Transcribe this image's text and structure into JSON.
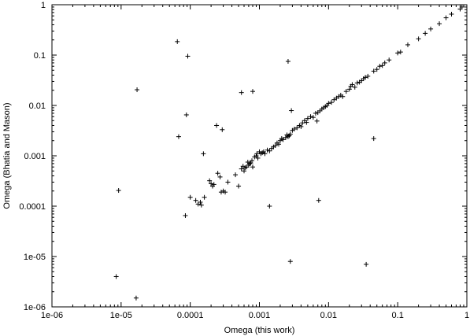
{
  "chart_data": {
    "type": "scatter",
    "title": "",
    "xlabel": "Omega (this work)",
    "ylabel": "Omega (Bhatia and Mason)",
    "xscale": "log",
    "yscale": "log",
    "xlim": [
      1e-06,
      1
    ],
    "ylim": [
      1e-06,
      1
    ],
    "grid": false,
    "marker": "+",
    "marker_color": "#000000",
    "xticks": [
      {
        "value": 1e-06,
        "label": "1e-06"
      },
      {
        "value": 1e-05,
        "label": "1e-05"
      },
      {
        "value": 0.0001,
        "label": "0.0001"
      },
      {
        "value": 0.001,
        "label": "0.001"
      },
      {
        "value": 0.01,
        "label": "0.01"
      },
      {
        "value": 0.1,
        "label": "0.1"
      },
      {
        "value": 1,
        "label": "1"
      }
    ],
    "yticks": [
      {
        "value": 1e-06,
        "label": "1e-06"
      },
      {
        "value": 1e-05,
        "label": "1e-05"
      },
      {
        "value": 0.0001,
        "label": "0.0001"
      },
      {
        "value": 0.001,
        "label": "0.001"
      },
      {
        "value": 0.01,
        "label": "0.01"
      },
      {
        "value": 0.1,
        "label": "0.1"
      },
      {
        "value": 1,
        "label": "1"
      }
    ],
    "points": [
      [
        8.5e-06,
        4e-06
      ],
      [
        1.65e-05,
        1.5e-06
      ],
      [
        9.2e-06,
        0.000205
      ],
      [
        1.7e-05,
        0.0205
      ],
      [
        6.5e-05,
        0.185
      ],
      [
        9.2e-05,
        0.095
      ],
      [
        6.8e-05,
        0.0024
      ],
      [
        8.8e-05,
        0.0065
      ],
      [
        0.000155,
        0.0011
      ],
      [
        0.00024,
        0.004
      ],
      [
        0.00029,
        0.0033
      ],
      [
        0.00055,
        0.018
      ],
      [
        0.0008,
        0.019
      ],
      [
        0.0026,
        0.075
      ],
      [
        0.0029,
        0.0079
      ],
      [
        0.0068,
        0.0049
      ],
      [
        0.0072,
        0.00013
      ],
      [
        0.0014,
        0.0001
      ],
      [
        0.0028,
        8e-06
      ],
      [
        0.035,
        7e-06
      ],
      [
        0.045,
        0.0022
      ],
      [
        8.5e-05,
        6.5e-05
      ],
      [
        0.0001,
        0.00015
      ],
      [
        0.00012,
        0.00013
      ],
      [
        0.00013,
        0.00011
      ],
      [
        0.00014,
        0.00012
      ],
      [
        0.000145,
        0.000105
      ],
      [
        0.00016,
        0.00015
      ],
      [
        0.00019,
        0.00032
      ],
      [
        0.0002,
        0.00028
      ],
      [
        0.00021,
        0.00025
      ],
      [
        0.00022,
        0.00027
      ],
      [
        0.00025,
        0.00045
      ],
      [
        0.00027,
        0.00038
      ],
      [
        0.00028,
        0.00019
      ],
      [
        0.0003,
        0.0002
      ],
      [
        0.00032,
        0.00019
      ],
      [
        0.00035,
        0.0003
      ],
      [
        0.00045,
        0.00042
      ],
      [
        0.0005,
        0.00025
      ],
      [
        0.00055,
        0.00055
      ],
      [
        0.00058,
        0.00062
      ],
      [
        0.0006,
        0.0005
      ],
      [
        0.00062,
        0.00058
      ],
      [
        0.00065,
        0.0006
      ],
      [
        0.00068,
        0.00075
      ],
      [
        0.0007,
        0.00065
      ],
      [
        0.00072,
        0.0007
      ],
      [
        0.00075,
        0.00072
      ],
      [
        0.00078,
        0.0008
      ],
      [
        0.0008,
        0.0006
      ],
      [
        0.00085,
        0.00095
      ],
      [
        0.0009,
        0.001
      ],
      [
        0.00092,
        0.0011
      ],
      [
        0.00095,
        0.0009
      ],
      [
        0.001,
        0.0012
      ],
      [
        0.00105,
        0.0011
      ],
      [
        0.0011,
        0.00115
      ],
      [
        0.00115,
        0.0012
      ],
      [
        0.0012,
        0.0011
      ],
      [
        0.0013,
        0.0013
      ],
      [
        0.0014,
        0.00125
      ],
      [
        0.0015,
        0.0014
      ],
      [
        0.0016,
        0.0015
      ],
      [
        0.0017,
        0.0016
      ],
      [
        0.0018,
        0.0018
      ],
      [
        0.0019,
        0.0017
      ],
      [
        0.002,
        0.002
      ],
      [
        0.0021,
        0.0022
      ],
      [
        0.0022,
        0.0021
      ],
      [
        0.0024,
        0.0023
      ],
      [
        0.0025,
        0.0026
      ],
      [
        0.0026,
        0.0024
      ],
      [
        0.0027,
        0.0025
      ],
      [
        0.0028,
        0.0027
      ],
      [
        0.003,
        0.0032
      ],
      [
        0.0032,
        0.0034
      ],
      [
        0.0035,
        0.0036
      ],
      [
        0.0038,
        0.004
      ],
      [
        0.004,
        0.0038
      ],
      [
        0.0042,
        0.0045
      ],
      [
        0.0045,
        0.005
      ],
      [
        0.0048,
        0.0046
      ],
      [
        0.005,
        0.0055
      ],
      [
        0.0055,
        0.006
      ],
      [
        0.006,
        0.0058
      ],
      [
        0.0065,
        0.007
      ],
      [
        0.007,
        0.0072
      ],
      [
        0.0075,
        0.0078
      ],
      [
        0.008,
        0.0085
      ],
      [
        0.0085,
        0.009
      ],
      [
        0.009,
        0.0095
      ],
      [
        0.0095,
        0.01
      ],
      [
        0.01,
        0.011
      ],
      [
        0.011,
        0.0115
      ],
      [
        0.012,
        0.013
      ],
      [
        0.013,
        0.014
      ],
      [
        0.014,
        0.015
      ],
      [
        0.015,
        0.016
      ],
      [
        0.016,
        0.015
      ],
      [
        0.018,
        0.019
      ],
      [
        0.02,
        0.021
      ],
      [
        0.021,
        0.024
      ],
      [
        0.022,
        0.026
      ],
      [
        0.024,
        0.023
      ],
      [
        0.026,
        0.028
      ],
      [
        0.028,
        0.029
      ],
      [
        0.03,
        0.031
      ],
      [
        0.032,
        0.034
      ],
      [
        0.034,
        0.036
      ],
      [
        0.037,
        0.038
      ],
      [
        0.045,
        0.048
      ],
      [
        0.05,
        0.052
      ],
      [
        0.055,
        0.06
      ],
      [
        0.06,
        0.062
      ],
      [
        0.065,
        0.07
      ],
      [
        0.075,
        0.08
      ],
      [
        0.1,
        0.11
      ],
      [
        0.11,
        0.115
      ],
      [
        0.14,
        0.16
      ],
      [
        0.2,
        0.21
      ],
      [
        0.25,
        0.27
      ],
      [
        0.3,
        0.33
      ],
      [
        0.4,
        0.42
      ],
      [
        0.5,
        0.55
      ],
      [
        0.6,
        0.65
      ],
      [
        0.8,
        0.82
      ],
      [
        0.85,
        0.9
      ]
    ]
  }
}
